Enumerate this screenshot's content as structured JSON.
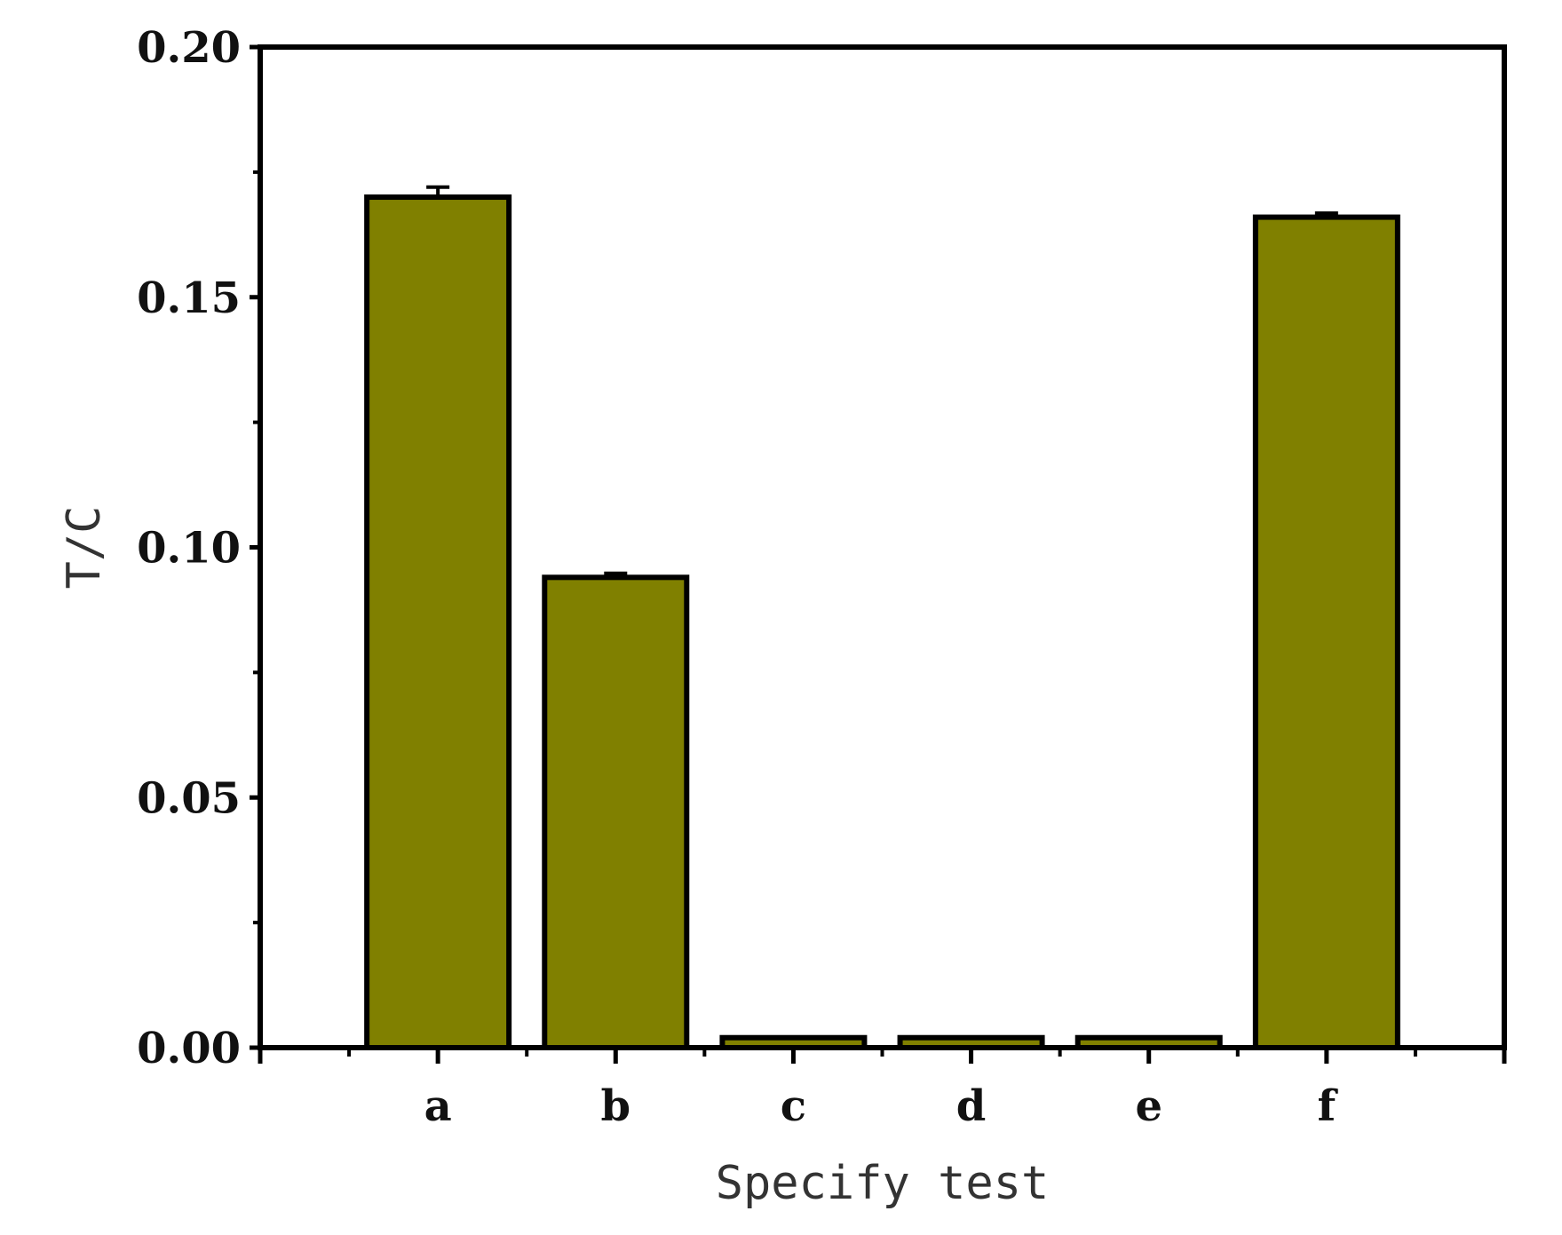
{
  "chart_data": {
    "type": "bar",
    "title": "",
    "xlabel": "Specify test",
    "ylabel": "T/C",
    "categories": [
      "a",
      "b",
      "c",
      "d",
      "e",
      "f"
    ],
    "series": [
      {
        "values": [
          0.17,
          0.094,
          0.002,
          0.002,
          0.002,
          0.166
        ],
        "errors": [
          0.002,
          0.0008,
          0.0,
          0.0,
          0.0,
          0.0008
        ]
      }
    ],
    "ylim": [
      0,
      0.2
    ],
    "yticks": [
      "0.00",
      "0.05",
      "0.10",
      "0.15",
      "0.20"
    ],
    "ytick_values": [
      0,
      0.05,
      0.1,
      0.15,
      0.2
    ],
    "grid": false,
    "legend": "none",
    "colors": {
      "bar_fill": "#808000",
      "bar_edge": "#000000",
      "axis": "#000000"
    }
  }
}
